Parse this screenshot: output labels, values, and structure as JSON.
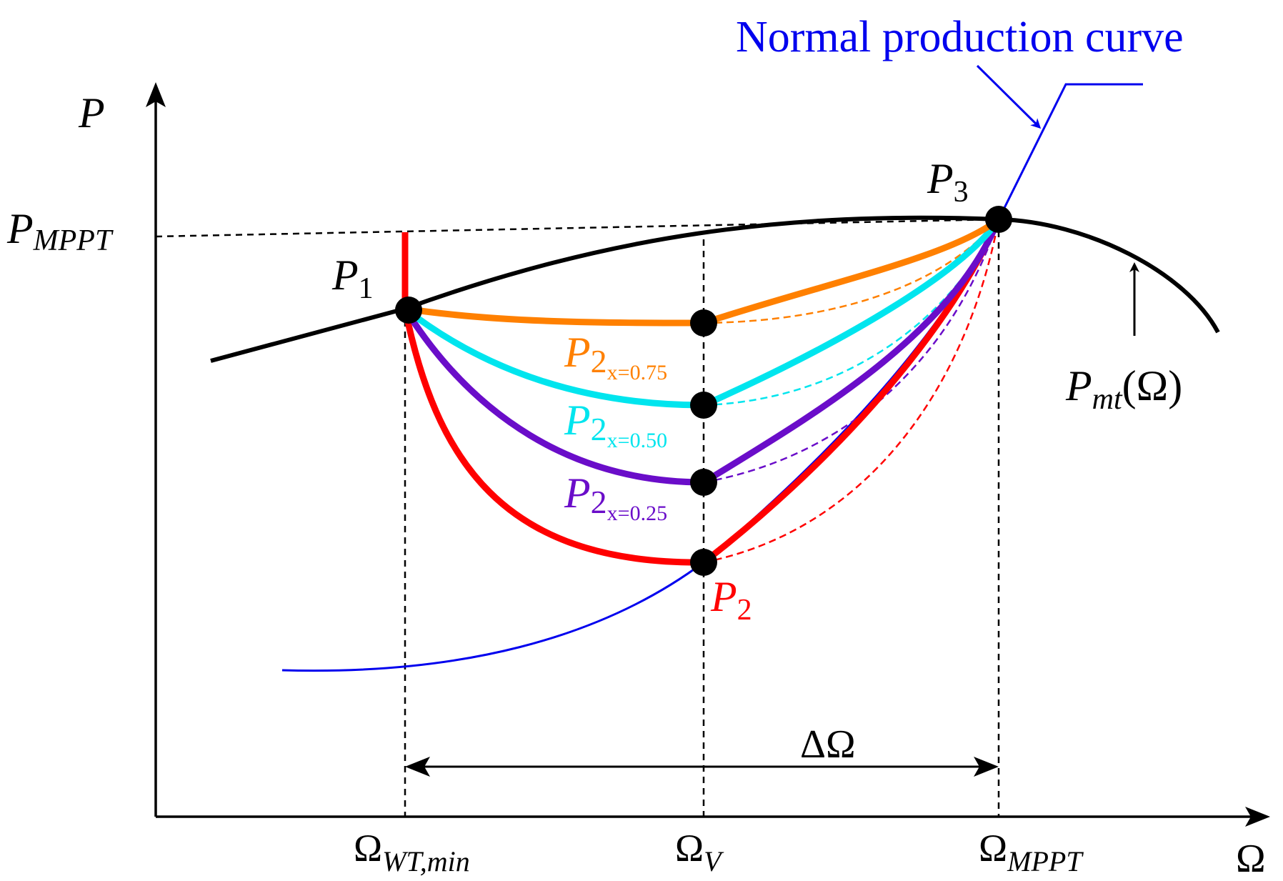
{
  "axes": {
    "y_label": "P",
    "x_label": "Ω"
  },
  "labels": {
    "p_mppt": {
      "main": "P",
      "sub": "MPPT"
    },
    "omega_wt_min": {
      "main": "Ω",
      "sub": "WT,min"
    },
    "omega_v": {
      "main": "Ω",
      "sub": "V"
    },
    "omega_mppt": {
      "main": "Ω",
      "sub": "MPPT"
    },
    "delta_omega": "ΔΩ",
    "normal_production_curve": "Normal production curve",
    "pmt": {
      "main": "P",
      "sub": "mt",
      "arg": "(Ω)"
    }
  },
  "points": {
    "p1": {
      "main": "P",
      "sub": "1"
    },
    "p2": {
      "main": "P",
      "sub": "2"
    },
    "p3": {
      "main": "P",
      "sub": "3"
    }
  },
  "variants": [
    {
      "main": "P",
      "sub": "2",
      "subsub": "x=0.75",
      "color": "#ff8000"
    },
    {
      "main": "P",
      "sub": "2",
      "subsub": "x=0.50",
      "color": "#00e5ee"
    },
    {
      "main": "P",
      "sub": "2",
      "subsub": "x=0.25",
      "color": "#6a0dc9"
    }
  ],
  "colors": {
    "black": "#000000",
    "blue": "#0000ee",
    "red": "#ff0000",
    "orange": "#ff8000",
    "cyan": "#00e5ee",
    "purple": "#6a0dc9"
  }
}
